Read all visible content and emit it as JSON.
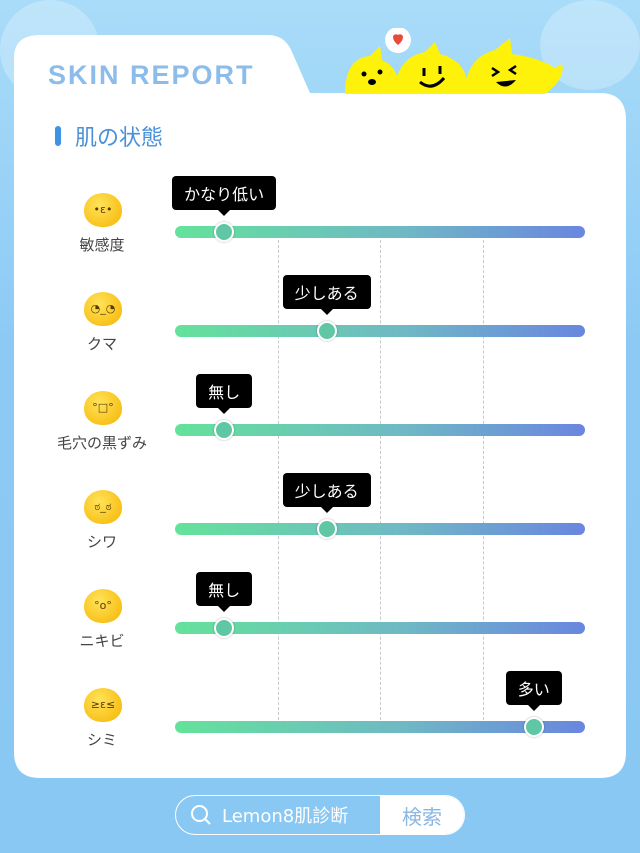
{
  "header": {
    "title": "SKIN REPORT",
    "section_title": "肌の状態"
  },
  "scale_labels_note": null,
  "metrics": [
    {
      "label": "敏感度",
      "value_label": "かなり低い",
      "level": 0.12,
      "icon": "sensitive-face-icon"
    },
    {
      "label": "クマ",
      "value_label": "少しある",
      "level": 0.37,
      "icon": "tired-face-icon"
    },
    {
      "label": "毛穴の黒ずみ",
      "value_label": "無し",
      "level": 0.12,
      "icon": "worried-face-icon"
    },
    {
      "label": "シワ",
      "value_label": "少しある",
      "level": 0.37,
      "icon": "frown-face-icon"
    },
    {
      "label": "ニキビ",
      "value_label": "無し",
      "level": 0.12,
      "icon": "surprised-face-icon"
    },
    {
      "label": "シミ",
      "value_label": "多い",
      "level": 0.875,
      "icon": "squint-face-icon"
    }
  ],
  "search": {
    "query": "Lemon8肌診断",
    "button": "検索",
    "icon": "search-icon"
  },
  "colors": {
    "track_start": "#64e29b",
    "track_end": "#6a86e0",
    "accent": "#3d93e8",
    "title": "#8cbcea"
  }
}
